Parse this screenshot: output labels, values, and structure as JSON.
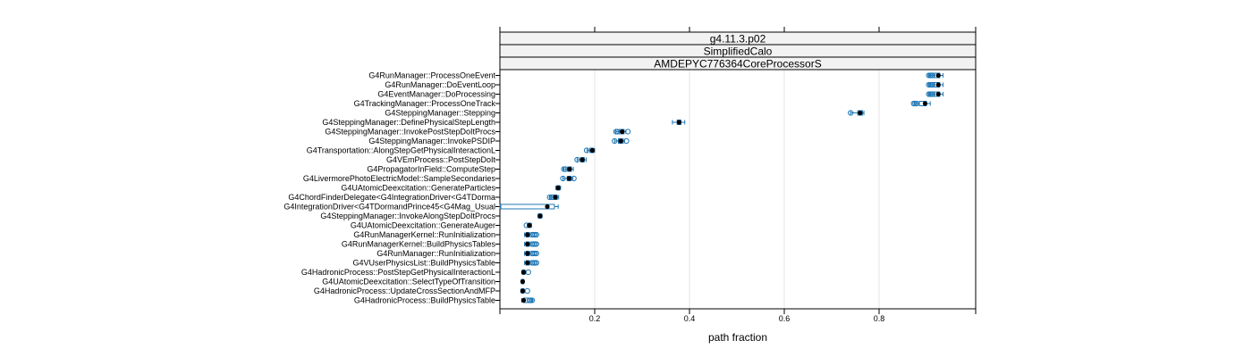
{
  "chart_data": {
    "type": "box",
    "panel_strips": [
      "g4.11.3.p02",
      "SimplifiedCalo",
      "AMDEPYC776364CoreProcessorS"
    ],
    "xlabel": "path fraction",
    "xlim": [
      0.0,
      1.0
    ],
    "xticks": [
      0.2,
      0.4,
      0.6,
      0.8
    ],
    "xtick_labels": [
      "0.2",
      "0.4",
      "0.6",
      "0.8"
    ],
    "grid": true,
    "colors": {
      "box": "#1f77b4",
      "outlier": "#1f77b4",
      "median": "#000000",
      "grid": "#e6e6e6",
      "strip": "#f2f2f2"
    },
    "categories": [
      "G4RunManager::ProcessOneEvent",
      "G4RunManager::DoEventLoop",
      "G4EventManager::DoProcessing",
      "G4TrackingManager::ProcessOneTrack",
      "G4SteppingManager::Stepping",
      "G4SteppingManager::DefinePhysicalStepLength",
      "G4SteppingManager::InvokePostStepDoItProcs",
      "G4SteppingManager::InvokePSDIP",
      "G4Transportation::AlongStepGetPhysicalInteractionL",
      "G4VEmProcess::PostStepDoIt",
      "G4PropagatorInField::ComputeStep",
      "G4LivermorePhotoElectricModel::SampleSecondaries",
      "G4UAtomicDeexcitation::GenerateParticles",
      "G4ChordFinderDelegate<G4IntegrationDriver<G4TDorma",
      "G4IntegrationDriver<G4TDormandPrince45<G4Mag_Usual",
      "G4SteppingManager::InvokeAlongStepDoItProcs",
      "G4UAtomicDeexcitation::GenerateAuger",
      "G4RunManagerKernel::RunInitialization",
      "G4RunManagerKernel::BuildPhysicsTables",
      "G4RunManager::RunInitialization",
      "G4VUserPhysicsList::BuildPhysicsTable",
      "G4HadronicProcess::PostStepGetPhysicalInteractionL",
      "G4UAtomicDeexcitation::SelectTypeOfTransition",
      "G4HadronicProcess::UpdateCrossSectionAndMFP",
      "G4HadronicProcess::BuildPhysicsTable"
    ],
    "boxes": [
      {
        "q1": 0.915,
        "median": 0.925,
        "q3": 0.928,
        "wlo": 0.905,
        "whi": 0.935,
        "outliers": [
          0.905,
          0.908,
          0.911,
          0.913
        ]
      },
      {
        "q1": 0.915,
        "median": 0.925,
        "q3": 0.928,
        "wlo": 0.905,
        "whi": 0.935,
        "outliers": [
          0.905,
          0.908,
          0.911,
          0.913
        ]
      },
      {
        "q1": 0.915,
        "median": 0.925,
        "q3": 0.928,
        "wlo": 0.905,
        "whi": 0.935,
        "outliers": [
          0.905,
          0.908,
          0.911,
          0.913
        ]
      },
      {
        "q1": 0.885,
        "median": 0.897,
        "q3": 0.9,
        "wlo": 0.875,
        "whi": 0.908,
        "outliers": [
          0.873,
          0.876,
          0.879
        ]
      },
      {
        "q1": 0.755,
        "median": 0.76,
        "q3": 0.765,
        "wlo": 0.74,
        "whi": 0.768,
        "outliers": [
          0.74
        ]
      },
      {
        "q1": 0.374,
        "median": 0.378,
        "q3": 0.382,
        "wlo": 0.364,
        "whi": 0.39,
        "outliers": []
      },
      {
        "q1": 0.252,
        "median": 0.258,
        "q3": 0.262,
        "wlo": 0.245,
        "whi": 0.266,
        "outliers": [
          0.245,
          0.248,
          0.27
        ]
      },
      {
        "q1": 0.25,
        "median": 0.255,
        "q3": 0.26,
        "wlo": 0.242,
        "whi": 0.263,
        "outliers": [
          0.242,
          0.267
        ]
      },
      {
        "q1": 0.19,
        "median": 0.195,
        "q3": 0.198,
        "wlo": 0.184,
        "whi": 0.2,
        "outliers": [
          0.183
        ]
      },
      {
        "q1": 0.17,
        "median": 0.174,
        "q3": 0.178,
        "wlo": 0.163,
        "whi": 0.182,
        "outliers": [
          0.163
        ]
      },
      {
        "q1": 0.143,
        "median": 0.147,
        "q3": 0.151,
        "wlo": 0.135,
        "whi": 0.155,
        "outliers": [
          0.135,
          0.138
        ]
      },
      {
        "q1": 0.142,
        "median": 0.146,
        "q3": 0.15,
        "wlo": 0.133,
        "whi": 0.154,
        "outliers": [
          0.133,
          0.156
        ]
      },
      {
        "q1": 0.12,
        "median": 0.123,
        "q3": 0.126,
        "wlo": 0.118,
        "whi": 0.128,
        "outliers": []
      },
      {
        "q1": 0.113,
        "median": 0.117,
        "q3": 0.121,
        "wlo": 0.105,
        "whi": 0.124,
        "outliers": [
          0.105,
          0.109,
          0.112
        ]
      },
      {
        "q1": 0.002,
        "median": 0.1,
        "q3": 0.115,
        "wlo": 0.0,
        "whi": 0.123,
        "outliers": []
      },
      {
        "q1": 0.082,
        "median": 0.085,
        "q3": 0.087,
        "wlo": 0.08,
        "whi": 0.089,
        "outliers": []
      },
      {
        "q1": 0.059,
        "median": 0.062,
        "q3": 0.065,
        "wlo": 0.058,
        "whi": 0.067,
        "outliers": [
          0.056
        ]
      },
      {
        "q1": 0.055,
        "median": 0.058,
        "q3": 0.062,
        "wlo": 0.052,
        "whi": 0.064,
        "outliers": [
          0.068,
          0.071,
          0.074,
          0.077
        ]
      },
      {
        "q1": 0.055,
        "median": 0.058,
        "q3": 0.062,
        "wlo": 0.052,
        "whi": 0.064,
        "outliers": [
          0.068,
          0.071,
          0.074,
          0.077
        ]
      },
      {
        "q1": 0.055,
        "median": 0.058,
        "q3": 0.062,
        "wlo": 0.052,
        "whi": 0.064,
        "outliers": [
          0.068,
          0.071,
          0.074,
          0.077
        ]
      },
      {
        "q1": 0.055,
        "median": 0.058,
        "q3": 0.062,
        "wlo": 0.052,
        "whi": 0.064,
        "outliers": [
          0.068,
          0.071,
          0.074,
          0.077
        ]
      },
      {
        "q1": 0.048,
        "median": 0.05,
        "q3": 0.052,
        "wlo": 0.046,
        "whi": 0.054,
        "outliers": [
          0.06
        ]
      },
      {
        "q1": 0.046,
        "median": 0.048,
        "q3": 0.05,
        "wlo": 0.045,
        "whi": 0.051,
        "outliers": []
      },
      {
        "q1": 0.046,
        "median": 0.048,
        "q3": 0.05,
        "wlo": 0.044,
        "whi": 0.052,
        "outliers": [
          0.058
        ]
      },
      {
        "q1": 0.05,
        "median": 0.05,
        "q3": 0.066,
        "wlo": 0.046,
        "whi": 0.068,
        "outliers": [
          0.062,
          0.065,
          0.068
        ]
      }
    ]
  }
}
